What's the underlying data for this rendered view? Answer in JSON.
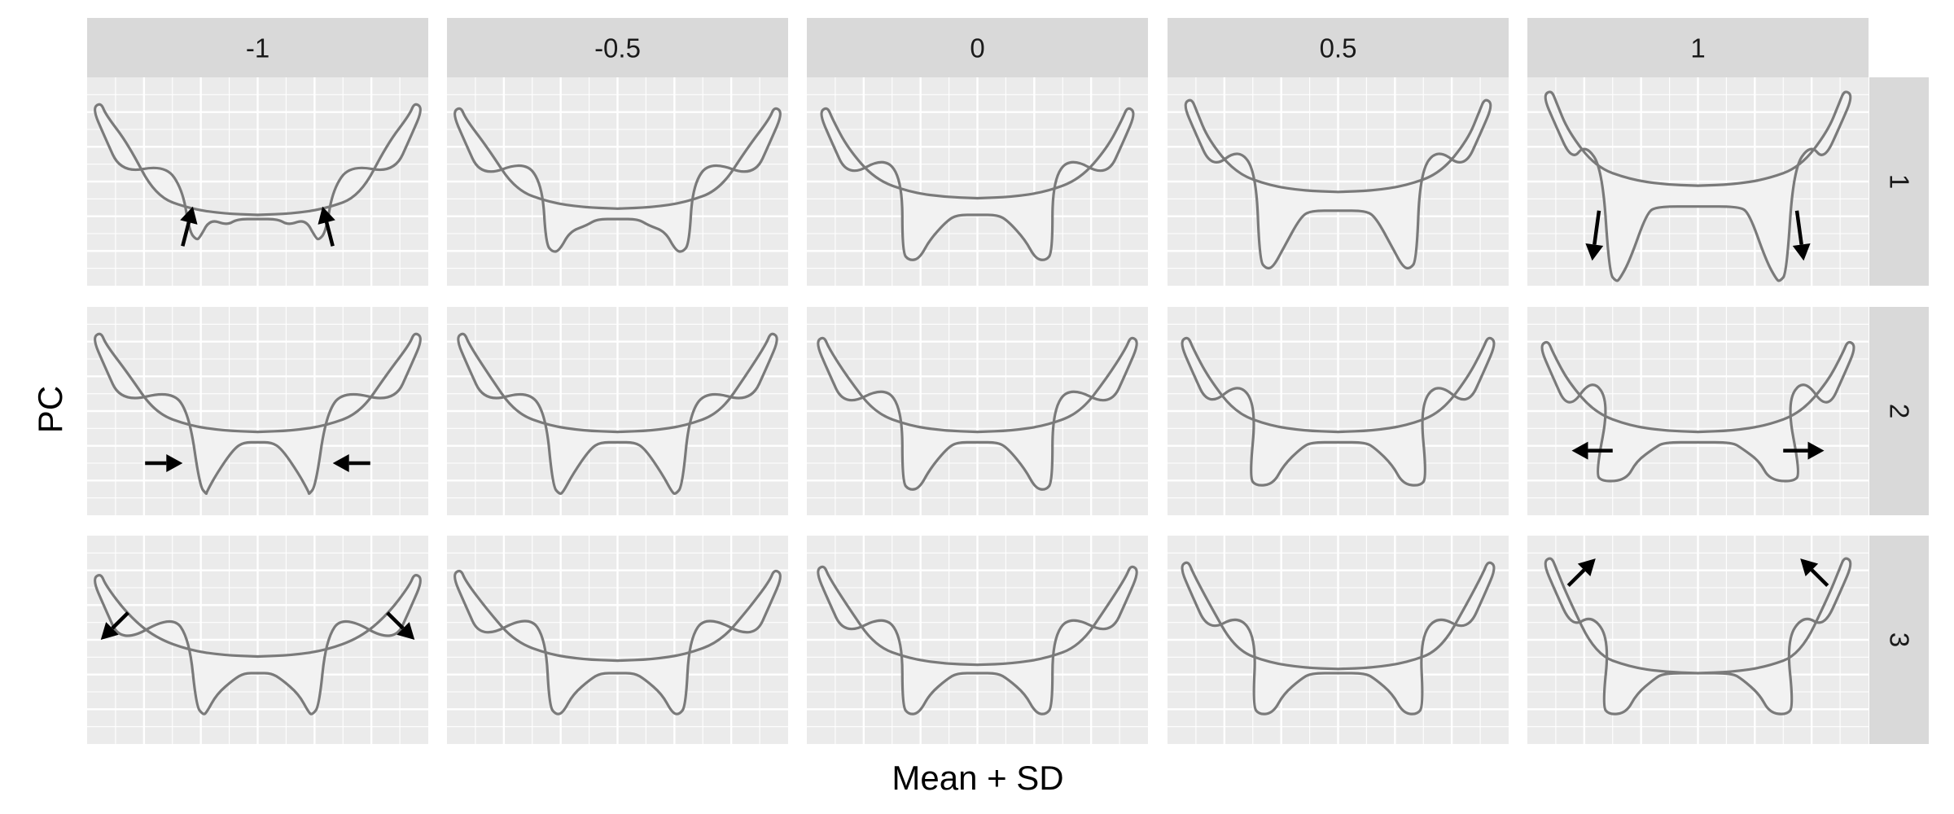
{
  "figure": {
    "column_strip_labels": [
      "-1",
      "-0.5",
      "0",
      "0.5",
      "1"
    ],
    "row_strip_labels": [
      "1",
      "2",
      "3"
    ],
    "x_axis_title": "Mean + SD",
    "y_axis_title": "PC"
  },
  "colors": {
    "panel_background": "#ebebeb",
    "grid_lines": "#ffffff",
    "strip_background": "#d9d9d9",
    "shape_fill": "#f2f2f2",
    "shape_outline": "#7a7a7a",
    "arrow": "#000000"
  },
  "shape_variation": {
    "description_of_axes": "columns = mean + k·SD along the principal component; rows = principal component index",
    "pc1": "lower flanges lengthen downward and open as SD increases",
    "pc2": "lower flanges move inward at -1 SD and outward at +1 SD",
    "pc3": "upper arms spread outward at -1 SD and inward at +1 SD"
  },
  "arrows": {
    "pc1_at_-1": "up",
    "pc1_at_1": "down",
    "pc2_at_-1": "inward",
    "pc2_at_1": "outward",
    "pc3_at_-1": "outward-down",
    "pc3_at_1": "inward-up"
  }
}
